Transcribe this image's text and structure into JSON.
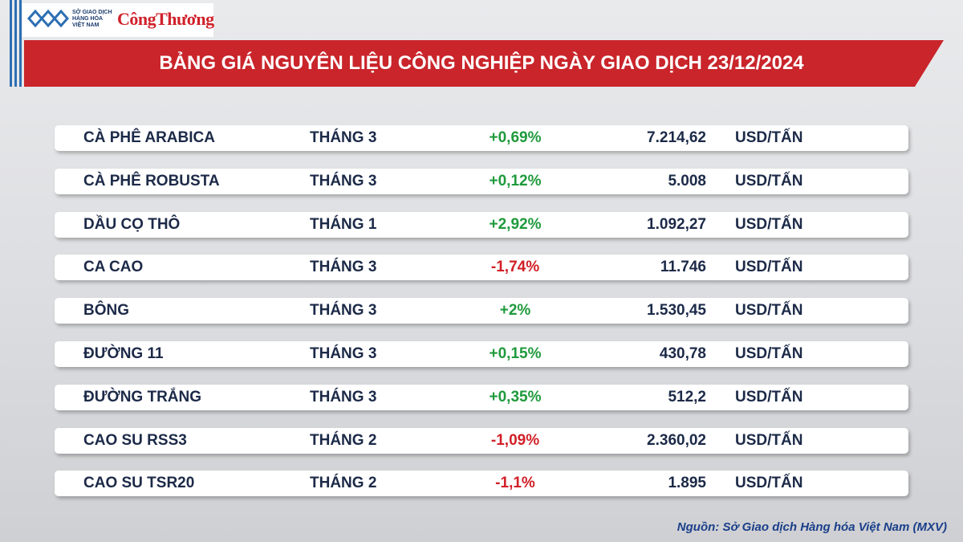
{
  "header": {
    "logo_lines": [
      "SỞ GIAO DỊCH",
      "HÀNG HÓA",
      "VIỆT NAM"
    ],
    "brand": "CôngThương",
    "title": "BẢNG GIÁ NGUYÊN LIỆU CÔNG NGHIỆP NGÀY GIAO DỊCH 23/12/2024"
  },
  "table": {
    "rows": [
      {
        "cells": [
          "CÀ PHÊ ARABICA",
          "THÁNG 3",
          "+0,69%",
          "7.214,62",
          "USD/TẤN"
        ],
        "change_color": "#1f9a3c"
      },
      {
        "cells": [
          "CÀ PHÊ ROBUSTA",
          "THÁNG 3",
          "+0,12%",
          "5.008",
          "USD/TẤN"
        ],
        "change_color": "#1f9a3c"
      },
      {
        "cells": [
          "DẦU CỌ THÔ",
          "THÁNG 1",
          "+2,92%",
          "1.092,27",
          "USD/TẤN"
        ],
        "change_color": "#1f9a3c"
      },
      {
        "cells": [
          "CA CAO",
          "THÁNG 3",
          "-1,74%",
          "11.746",
          "USD/TẤN"
        ],
        "change_color": "#d11f26"
      },
      {
        "cells": [
          "BÔNG",
          "THÁNG 3",
          "+2%",
          "1.530,45",
          "USD/TẤN"
        ],
        "change_color": "#1f9a3c"
      },
      {
        "cells": [
          "ĐƯỜNG 11",
          "THÁNG 3",
          "+0,15%",
          "430,78",
          "USD/TẤN"
        ],
        "change_color": "#1f9a3c"
      },
      {
        "cells": [
          "ĐƯỜNG TRẮNG",
          "THÁNG 3",
          "+0,35%",
          "512,2",
          "USD/TẤN"
        ],
        "change_color": "#1f9a3c"
      },
      {
        "cells": [
          "CAO SU RSS3",
          "THÁNG 2",
          "-1,09%",
          "2.360,02",
          "USD/TẤN"
        ],
        "change_color": "#d11f26"
      },
      {
        "cells": [
          "CAO SU TSR20",
          "THÁNG 2",
          "-1,1%",
          "1.895",
          "USD/TẤN"
        ],
        "change_color": "#d11f26"
      }
    ]
  },
  "footer": {
    "source": "Nguồn: Sở Giao dịch Hàng hóa Việt Nam (MXV)"
  }
}
